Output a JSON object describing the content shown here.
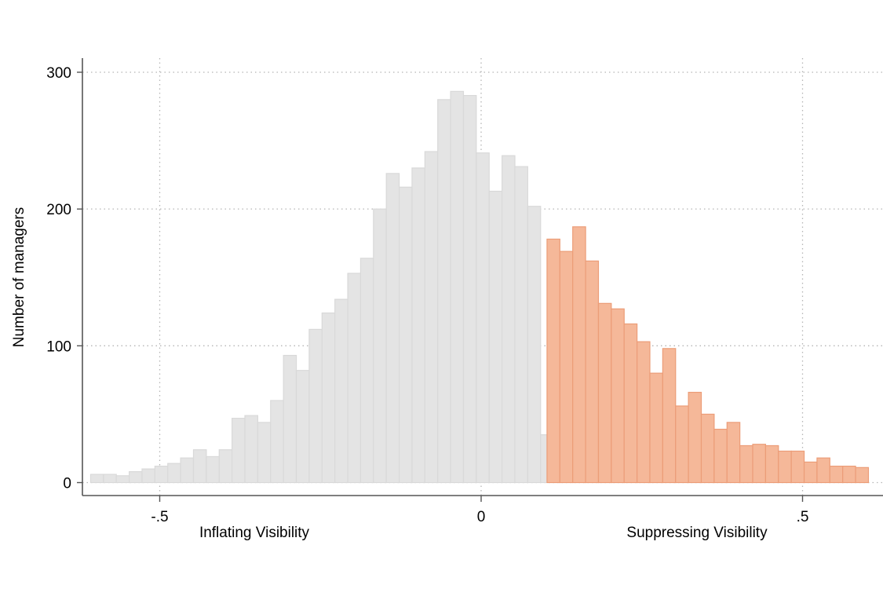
{
  "chart_data": {
    "type": "histogram",
    "ylabel": "Number of managers",
    "xlabel": "",
    "x_annotations": {
      "left": "Inflating Visibility",
      "right": "Suppressing Visibility"
    },
    "xlim": [
      -0.625,
      0.625
    ],
    "ylim": [
      -10,
      310
    ],
    "x_ticks": [
      {
        "value": -0.5,
        "label": "-.5"
      },
      {
        "value": 0,
        "label": "0"
      },
      {
        "value": 0.5,
        "label": ".5"
      }
    ],
    "y_ticks": [
      {
        "value": 0,
        "label": "0"
      },
      {
        "value": 100,
        "label": "100"
      },
      {
        "value": 200,
        "label": "200"
      },
      {
        "value": 300,
        "label": "300"
      }
    ],
    "grid": true,
    "bin_width": 0.02,
    "threshold": 0.1025,
    "colors": {
      "below": "#e4e4e4",
      "below_edge": "#d9d9d9",
      "above": "#f5b899",
      "above_edge": "#ec9d78"
    },
    "bins": [
      {
        "x0": -0.6075,
        "count": 6
      },
      {
        "x0": -0.5875,
        "count": 6
      },
      {
        "x0": -0.5675,
        "count": 5
      },
      {
        "x0": -0.5475,
        "count": 8
      },
      {
        "x0": -0.5275,
        "count": 10
      },
      {
        "x0": -0.5075,
        "count": 12
      },
      {
        "x0": -0.4875,
        "count": 14
      },
      {
        "x0": -0.4675,
        "count": 18
      },
      {
        "x0": -0.4475,
        "count": 24
      },
      {
        "x0": -0.4275,
        "count": 19
      },
      {
        "x0": -0.4075,
        "count": 24
      },
      {
        "x0": -0.3875,
        "count": 47
      },
      {
        "x0": -0.3675,
        "count": 49
      },
      {
        "x0": -0.3475,
        "count": 44
      },
      {
        "x0": -0.3275,
        "count": 60
      },
      {
        "x0": -0.3075,
        "count": 93
      },
      {
        "x0": -0.2875,
        "count": 82
      },
      {
        "x0": -0.2675,
        "count": 112
      },
      {
        "x0": -0.2475,
        "count": 124
      },
      {
        "x0": -0.2275,
        "count": 134
      },
      {
        "x0": -0.2075,
        "count": 153
      },
      {
        "x0": -0.1875,
        "count": 164
      },
      {
        "x0": -0.1675,
        "count": 200
      },
      {
        "x0": -0.1475,
        "count": 226
      },
      {
        "x0": -0.1275,
        "count": 216
      },
      {
        "x0": -0.1075,
        "count": 230
      },
      {
        "x0": -0.0875,
        "count": 242
      },
      {
        "x0": -0.0675,
        "count": 280
      },
      {
        "x0": -0.0475,
        "count": 286
      },
      {
        "x0": -0.0275,
        "count": 283
      },
      {
        "x0": -0.0075,
        "count": 241
      },
      {
        "x0": 0.0125,
        "count": 213
      },
      {
        "x0": 0.0325,
        "count": 239
      },
      {
        "x0": 0.0525,
        "count": 231
      },
      {
        "x0": 0.0725,
        "count": 202
      },
      {
        "x0": 0.0925,
        "count": 35
      },
      {
        "x0": 0.1025,
        "count": 178
      },
      {
        "x0": 0.1225,
        "count": 169
      },
      {
        "x0": 0.1425,
        "count": 187
      },
      {
        "x0": 0.1625,
        "count": 162
      },
      {
        "x0": 0.1825,
        "count": 131
      },
      {
        "x0": 0.2025,
        "count": 127
      },
      {
        "x0": 0.2225,
        "count": 116
      },
      {
        "x0": 0.2425,
        "count": 103
      },
      {
        "x0": 0.2625,
        "count": 80
      },
      {
        "x0": 0.2825,
        "count": 98
      },
      {
        "x0": 0.3025,
        "count": 56
      },
      {
        "x0": 0.3225,
        "count": 66
      },
      {
        "x0": 0.3425,
        "count": 50
      },
      {
        "x0": 0.3625,
        "count": 39
      },
      {
        "x0": 0.3825,
        "count": 44
      },
      {
        "x0": 0.4025,
        "count": 27
      },
      {
        "x0": 0.4225,
        "count": 28
      },
      {
        "x0": 0.4425,
        "count": 27
      },
      {
        "x0": 0.4625,
        "count": 23
      },
      {
        "x0": 0.4825,
        "count": 23
      },
      {
        "x0": 0.5025,
        "count": 15
      },
      {
        "x0": 0.5225,
        "count": 18
      },
      {
        "x0": 0.5425,
        "count": 12
      },
      {
        "x0": 0.5625,
        "count": 12
      },
      {
        "x0": 0.5825,
        "count": 11
      }
    ]
  }
}
